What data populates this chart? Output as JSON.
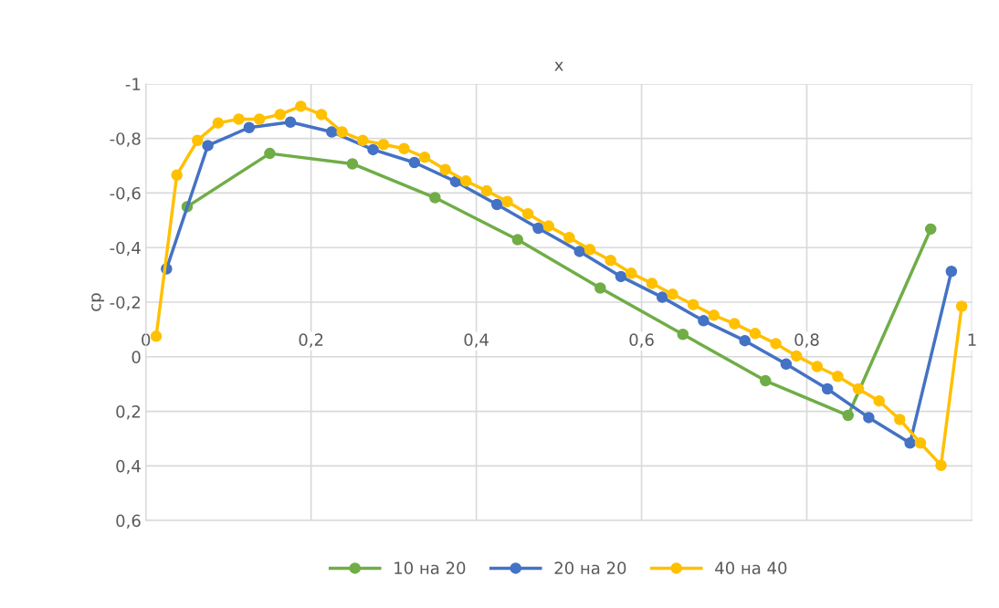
{
  "chart_data": {
    "type": "line",
    "xlabel": "x",
    "ylabel": "cp",
    "xlim": [
      0,
      1
    ],
    "xticks": [
      0,
      {
        "value": 0.2,
        "label": "0,2"
      },
      {
        "value": 0.4,
        "label": "0,4"
      },
      {
        "value": 0.6,
        "label": "0,6"
      },
      {
        "value": 0.8,
        "label": "0,8"
      },
      1
    ],
    "ylim": [
      0.6,
      -1
    ],
    "yticks": [
      -1,
      {
        "value": -0.8,
        "label": "-0,8"
      },
      {
        "value": -0.6,
        "label": "-0,6"
      },
      {
        "value": -0.4,
        "label": "-0,4"
      },
      {
        "value": -0.2,
        "label": "-0,2"
      },
      0,
      {
        "value": 0.2,
        "label": "0,2"
      },
      {
        "value": 0.4,
        "label": "0,4"
      },
      {
        "value": 0.6,
        "label": "0,6"
      }
    ],
    "grid": true,
    "legend": "bottom",
    "marker": "circle",
    "line_style": "solid",
    "series": [
      {
        "name": "10 на 20",
        "color": "#70ad47",
        "x": [
          0.05,
          0.15,
          0.25,
          0.35,
          0.45,
          0.55,
          0.65,
          0.75,
          0.85,
          0.95
        ],
        "values": [
          -0.55,
          -0.745,
          -0.707,
          -0.583,
          -0.429,
          -0.252,
          -0.082,
          0.088,
          0.215,
          -0.468
        ]
      },
      {
        "name": "20 на 20",
        "color": "#4472c4",
        "x": [
          0.025,
          0.075,
          0.125,
          0.175,
          0.225,
          0.275,
          0.325,
          0.375,
          0.425,
          0.475,
          0.525,
          0.575,
          0.625,
          0.675,
          0.725,
          0.775,
          0.825,
          0.875,
          0.925,
          0.975
        ],
        "values": [
          -0.322,
          -0.774,
          -0.84,
          -0.86,
          -0.824,
          -0.759,
          -0.712,
          -0.642,
          -0.558,
          -0.471,
          -0.386,
          -0.294,
          -0.218,
          -0.132,
          -0.059,
          0.027,
          0.118,
          0.223,
          0.316,
          -0.313
        ]
      },
      {
        "name": "40 на 40",
        "color": "#ffc000",
        "x": [
          0.0125,
          0.0375,
          0.0625,
          0.0875,
          0.1125,
          0.1375,
          0.1625,
          0.1875,
          0.2125,
          0.2375,
          0.2625,
          0.2875,
          0.3125,
          0.3375,
          0.3625,
          0.3875,
          0.4125,
          0.4375,
          0.4625,
          0.4875,
          0.5125,
          0.5375,
          0.5625,
          0.5875,
          0.6125,
          0.6375,
          0.6625,
          0.6875,
          0.7125,
          0.7375,
          0.7625,
          0.7875,
          0.8125,
          0.8375,
          0.8625,
          0.8875,
          0.9125,
          0.9375,
          0.9625,
          0.9875
        ],
        "values": [
          -0.075,
          -0.666,
          -0.793,
          -0.857,
          -0.871,
          -0.871,
          -0.888,
          -0.918,
          -0.888,
          -0.824,
          -0.793,
          -0.778,
          -0.763,
          -0.731,
          -0.686,
          -0.644,
          -0.608,
          -0.569,
          -0.524,
          -0.479,
          -0.437,
          -0.393,
          -0.353,
          -0.306,
          -0.269,
          -0.229,
          -0.191,
          -0.152,
          -0.121,
          -0.085,
          -0.048,
          -0.003,
          0.036,
          0.072,
          0.118,
          0.162,
          0.23,
          0.316,
          0.398,
          -0.185
        ]
      }
    ]
  }
}
